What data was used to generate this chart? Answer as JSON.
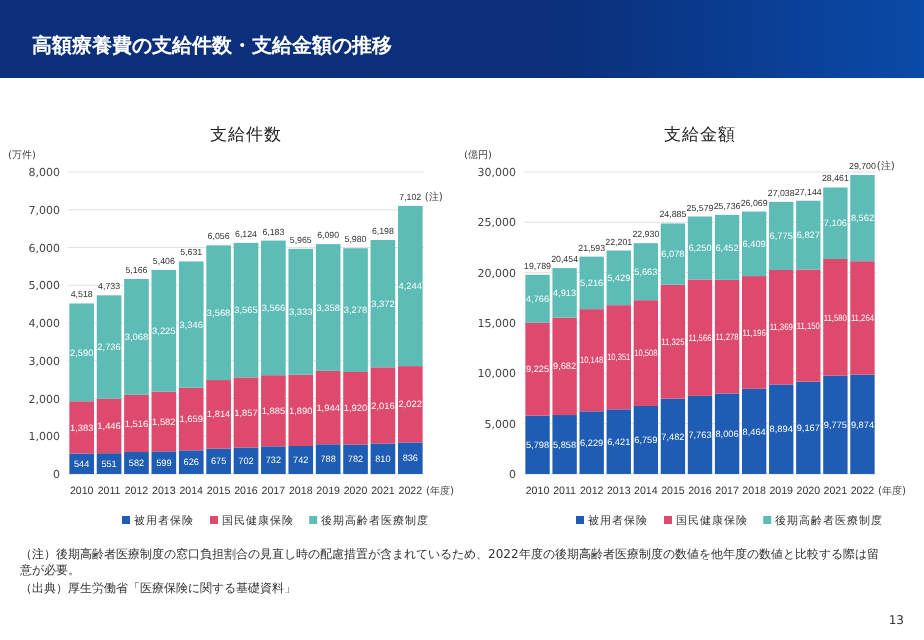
{
  "chart_data": [
    {
      "type": "bar",
      "title": "支給件数",
      "ylabel": "(万件)",
      "xlabel": "(年度)",
      "stacked": true,
      "grid": "y",
      "legend": "bottom",
      "categories": [
        "2010",
        "2011",
        "2012",
        "2013",
        "2014",
        "2015",
        "2016",
        "2017",
        "2018",
        "2019",
        "2020",
        "2021",
        "2022"
      ],
      "ylim": [
        0,
        8000
      ],
      "yticks": [
        {
          "value": 0,
          "label": "0"
        },
        {
          "value": 1000,
          "label": "1,000"
        },
        {
          "value": 2000,
          "label": "2,000"
        },
        {
          "value": 3000,
          "label": "3,000"
        },
        {
          "value": 4000,
          "label": "4,000"
        },
        {
          "value": 5000,
          "label": "5,000"
        },
        {
          "value": 6000,
          "label": "6,000"
        },
        {
          "value": 7000,
          "label": "7,000"
        },
        {
          "value": 8000,
          "label": "8,000"
        }
      ],
      "series": [
        {
          "name": "被用者保険",
          "color": "#1f5cb4",
          "values": [
            544,
            551,
            582,
            599,
            626,
            675,
            702,
            732,
            742,
            788,
            782,
            810,
            836
          ],
          "value_labels": [
            "544",
            "551",
            "582",
            "599",
            "626",
            "675",
            "702",
            "732",
            "742",
            "788",
            "782",
            "810",
            "836"
          ]
        },
        {
          "name": "国民健康保険",
          "color": "#dd4a6e",
          "values": [
            1383,
            1446,
            1516,
            1582,
            1659,
            1814,
            1857,
            1885,
            1890,
            1944,
            1920,
            2016,
            2022
          ],
          "value_labels": [
            "1,383",
            "1,446",
            "1,516",
            "1,582",
            "1,659",
            "1,814",
            "1,857",
            "1,885",
            "1,890",
            "1,944",
            "1,920",
            "2,016",
            "2,022"
          ]
        },
        {
          "name": "後期高齢者医療制度",
          "color": "#5ebcb7",
          "values": [
            2590,
            2736,
            3068,
            3225,
            3346,
            3568,
            3565,
            3566,
            3333,
            3358,
            3278,
            3372,
            4244
          ],
          "value_labels": [
            "2,590",
            "2,736",
            "3,068",
            "3,225",
            "3,346",
            "3,568",
            "3,565",
            "3,566",
            "3,333",
            "3,358",
            "3,278",
            "3,372",
            "4,244"
          ]
        }
      ],
      "totals": [
        "4,518",
        "4,733",
        "5,166",
        "5,406",
        "5,631",
        "6,056",
        "6,124",
        "6,183",
        "5,965",
        "6,090",
        "5,980",
        "6,198",
        "7,102"
      ],
      "annotations": [
        "高額療養費の支給件数・支給金額の推移",
        "（注）後期高齢者医療制度の窓口負担割合の見直し時の配慮措置が含まれているため、2022年度の後期高齢者医療制度の数値を他年度の数値と比較する際は留意が必要。",
        "（出典）厚生労働省「医療保険に関する基礎資料」",
        "13",
        {
          "text": "(注)",
          "x": "2022",
          "y": 7102
        }
      ]
    },
    {
      "type": "bar",
      "title": "支給金額",
      "ylabel": "(億円)",
      "xlabel": "(年度)",
      "stacked": true,
      "grid": "y",
      "legend": "bottom",
      "categories": [
        "2010",
        "2011",
        "2012",
        "2013",
        "2014",
        "2015",
        "2016",
        "2017",
        "2018",
        "2019",
        "2020",
        "2021",
        "2022"
      ],
      "ylim": [
        0,
        30000
      ],
      "yticks": [
        {
          "value": 0,
          "label": "0"
        },
        {
          "value": 5000,
          "label": "5,000"
        },
        {
          "value": 10000,
          "label": "10,000"
        },
        {
          "value": 15000,
          "label": "15,000"
        },
        {
          "value": 20000,
          "label": "20,000"
        },
        {
          "value": 25000,
          "label": "25,000"
        },
        {
          "value": 30000,
          "label": "30,000"
        }
      ],
      "series": [
        {
          "name": "被用者保険",
          "color": "#1f5cb4",
          "values": [
            5798,
            5858,
            6229,
            6421,
            6759,
            7482,
            7763,
            8006,
            8464,
            8894,
            9167,
            9775,
            9874
          ],
          "value_labels": [
            "5,798",
            "5,858",
            "6,229",
            "6,421",
            "6,759",
            "7,482",
            "7,763",
            "8,006",
            "8,464",
            "8,894",
            "9,167",
            "9,775",
            "9,874"
          ]
        },
        {
          "name": "国民健康保険",
          "color": "#dd4a6e",
          "values": [
            9225,
            9682,
            10148,
            10351,
            10508,
            11325,
            11566,
            11278,
            11196,
            11369,
            11150,
            11580,
            11264
          ],
          "value_labels": [
            "9,225",
            "9,682",
            "10,148",
            "10,351",
            "10,508",
            "11,325",
            "11,566",
            "11,278",
            "11,196",
            "11,369",
            "11,150",
            "11,580",
            "11,264"
          ]
        },
        {
          "name": "後期高齢者医療制度",
          "color": "#5ebcb7",
          "values": [
            4766,
            4913,
            5216,
            5429,
            5663,
            6078,
            6250,
            6452,
            6409,
            6775,
            6827,
            7106,
            8562
          ],
          "value_labels": [
            "4,766",
            "4,913",
            "5,216",
            "5,429",
            "5,663",
            "6,078",
            "6,250",
            "6,452",
            "6,409",
            "6,775",
            "6,827",
            "7,106",
            "8,562"
          ]
        }
      ],
      "totals": [
        "19,789",
        "20,454",
        "21,593",
        "22,201",
        "22,930",
        "24,885",
        "25,579",
        "25,736",
        "26,069",
        "27,038",
        "27,144",
        "28,461",
        "29,700"
      ],
      "annotations": [
        {
          "text": "(注)",
          "x": "2022",
          "y": 29700
        }
      ]
    }
  ]
}
